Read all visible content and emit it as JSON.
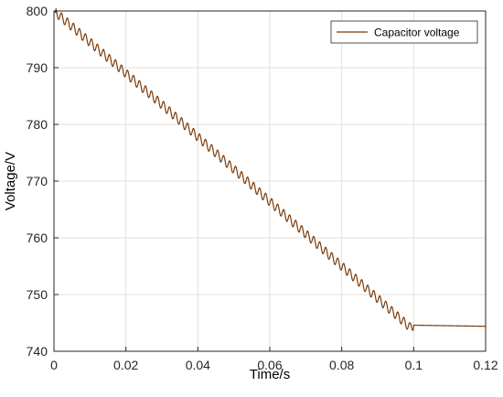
{
  "chart_data": {
    "type": "line",
    "title": "",
    "xlabel": "Time/s",
    "ylabel": "Voltage/V",
    "xlim": [
      0,
      0.12
    ],
    "ylim": [
      740,
      800
    ],
    "xticks": [
      0,
      0.02,
      0.04,
      0.06,
      0.08,
      0.1,
      0.12
    ],
    "xtick_labels": [
      "0",
      "0.02",
      "0.04",
      "0.06",
      "0.08",
      "0.1",
      "0.12"
    ],
    "yticks": [
      740,
      750,
      760,
      770,
      780,
      790,
      800
    ],
    "ytick_labels": [
      "740",
      "750",
      "760",
      "770",
      "780",
      "790",
      "800"
    ],
    "grid": true,
    "legend_position": "top-right",
    "series": [
      {
        "name": "Capacitor voltage",
        "color": "#7a3b0a",
        "x": [
          0,
          0.01,
          0.02,
          0.03,
          0.04,
          0.05,
          0.06,
          0.07,
          0.08,
          0.09,
          0.099,
          0.1,
          0.11,
          0.12
        ],
        "y": [
          800,
          794.5,
          789,
          783.5,
          777.8,
          772.1,
          766.4,
          760.7,
          755.0,
          749.3,
          744.2,
          744.6,
          744.5,
          744.4
        ],
        "ripple": {
          "amplitude_V": 0.8,
          "period_s": 0.00167,
          "until_s": 0.1
        }
      }
    ]
  }
}
